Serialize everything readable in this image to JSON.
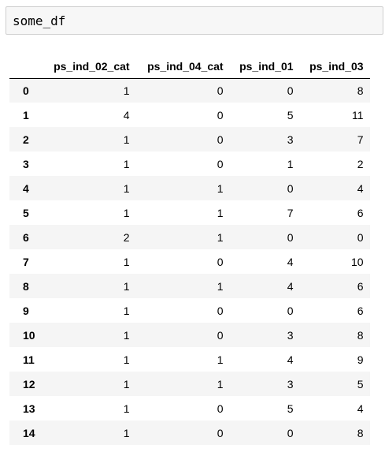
{
  "code_cell": {
    "source": "some_df"
  },
  "dataframe": {
    "columns": [
      "ps_ind_02_cat",
      "ps_ind_04_cat",
      "ps_ind_01",
      "ps_ind_03"
    ],
    "rows": [
      {
        "index": "0",
        "values": [
          "1",
          "0",
          "0",
          "8"
        ]
      },
      {
        "index": "1",
        "values": [
          "4",
          "0",
          "5",
          "11"
        ]
      },
      {
        "index": "2",
        "values": [
          "1",
          "0",
          "3",
          "7"
        ]
      },
      {
        "index": "3",
        "values": [
          "1",
          "0",
          "1",
          "2"
        ]
      },
      {
        "index": "4",
        "values": [
          "1",
          "1",
          "0",
          "4"
        ]
      },
      {
        "index": "5",
        "values": [
          "1",
          "1",
          "7",
          "6"
        ]
      },
      {
        "index": "6",
        "values": [
          "2",
          "1",
          "0",
          "0"
        ]
      },
      {
        "index": "7",
        "values": [
          "1",
          "0",
          "4",
          "10"
        ]
      },
      {
        "index": "8",
        "values": [
          "1",
          "1",
          "4",
          "6"
        ]
      },
      {
        "index": "9",
        "values": [
          "1",
          "0",
          "0",
          "6"
        ]
      },
      {
        "index": "10",
        "values": [
          "1",
          "0",
          "3",
          "8"
        ]
      },
      {
        "index": "11",
        "values": [
          "1",
          "1",
          "4",
          "9"
        ]
      },
      {
        "index": "12",
        "values": [
          "1",
          "1",
          "3",
          "5"
        ]
      },
      {
        "index": "13",
        "values": [
          "1",
          "0",
          "5",
          "4"
        ]
      },
      {
        "index": "14",
        "values": [
          "1",
          "0",
          "0",
          "8"
        ]
      }
    ]
  },
  "colors": {
    "code_cell_background": "#f7f7f7",
    "code_cell_border": "#cfcfcf",
    "table_stripe": "#f5f5f5",
    "header_rule": "#000000"
  }
}
